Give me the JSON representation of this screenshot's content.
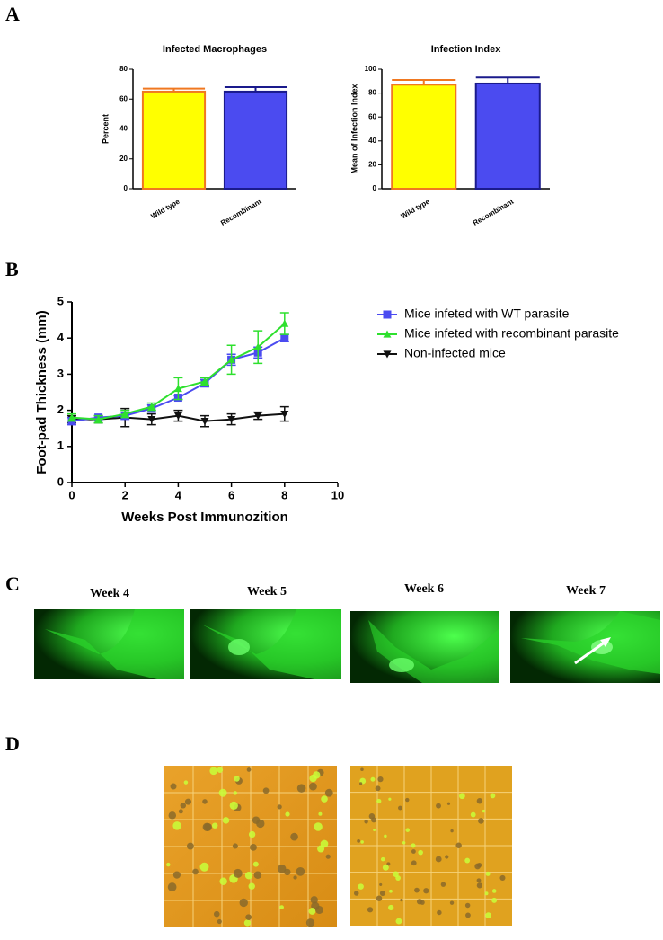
{
  "panel_labels": [
    "A",
    "B",
    "C",
    "D"
  ],
  "chart_data": [
    {
      "type": "bar",
      "title": "Infected Macrophages",
      "ylabel": "Percent",
      "categories": [
        "Wild type",
        "Recombinant"
      ],
      "values": [
        65,
        65
      ],
      "errors": [
        2,
        3
      ],
      "colors": [
        "#ffff00",
        "#4b4bf0"
      ],
      "edge_colors": [
        "#f07820",
        "#1a1a8c"
      ],
      "ylim": [
        0,
        80
      ],
      "yticks": [
        0,
        20,
        40,
        60,
        80
      ]
    },
    {
      "type": "bar",
      "title": "Infection Index",
      "ylabel": "Mean of Infection Index",
      "categories": [
        "Wild type",
        "Recombinant"
      ],
      "values": [
        87,
        88
      ],
      "errors": [
        4,
        5
      ],
      "colors": [
        "#ffff00",
        "#4b4bf0"
      ],
      "edge_colors": [
        "#f07820",
        "#1a1a8c"
      ],
      "ylim": [
        0,
        100
      ],
      "yticks": [
        0,
        20,
        40,
        60,
        80,
        100
      ]
    },
    {
      "type": "line",
      "xlabel": "Weeks Post Immunozition",
      "ylabel": "Foot-pad Thickness (mm)",
      "x": [
        0,
        1,
        2,
        3,
        4,
        5,
        6,
        7,
        8
      ],
      "series": [
        {
          "name": "Mice infeted with WT parasite",
          "color": "#4b4bf0",
          "marker": "square",
          "values": [
            1.7,
            1.8,
            1.85,
            2.05,
            2.35,
            2.75,
            3.4,
            3.6,
            4.0
          ],
          "errors": [
            0.1,
            0.05,
            0.1,
            0.1,
            0.05,
            0.1,
            0.15,
            0.15,
            0.1
          ]
        },
        {
          "name": "Mice infeted with recombinant parasite",
          "color": "#2ee02e",
          "marker": "triangle",
          "values": [
            1.8,
            1.75,
            1.9,
            2.1,
            2.6,
            2.8,
            3.4,
            3.75,
            4.4
          ],
          "errors": [
            0.1,
            0.1,
            0.1,
            0.1,
            0.3,
            0.1,
            0.4,
            0.45,
            0.3
          ]
        },
        {
          "name": "Non-infected mice",
          "color": "#111111",
          "marker": "triangle-down",
          "values": [
            1.75,
            1.75,
            1.8,
            1.75,
            1.85,
            1.7,
            1.75,
            1.85,
            1.9
          ],
          "errors": [
            0.1,
            0.1,
            0.25,
            0.15,
            0.15,
            0.15,
            0.15,
            0.1,
            0.2
          ]
        }
      ],
      "xlim": [
        0,
        10
      ],
      "xticks": [
        0,
        2,
        4,
        6,
        8,
        10
      ],
      "ylim": [
        0,
        5
      ],
      "yticks": [
        0,
        1,
        2,
        3,
        4,
        5
      ]
    }
  ],
  "photos": {
    "weeks": [
      "Week 4",
      "Week 5",
      "Week 6",
      "Week 7"
    ]
  }
}
